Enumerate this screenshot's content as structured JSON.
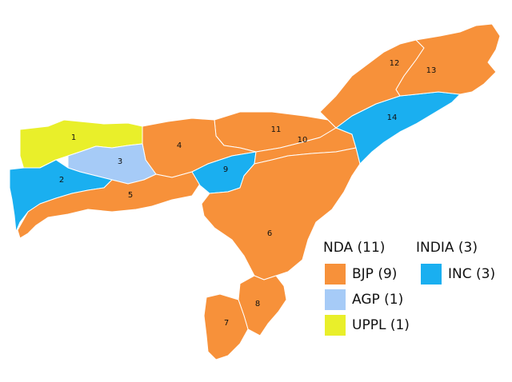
{
  "colors": {
    "bjp": "#F7913A",
    "agp": "#A6CBF7",
    "uppl": "#E9EF2A",
    "inc": "#1AAFF0",
    "border": "#ffffff"
  },
  "regions": [
    {
      "id": "1",
      "label": "1",
      "party": "uppl"
    },
    {
      "id": "2",
      "label": "2",
      "party": "inc"
    },
    {
      "id": "3",
      "label": "3",
      "party": "agp"
    },
    {
      "id": "4",
      "label": "4",
      "party": "bjp"
    },
    {
      "id": "5",
      "label": "5",
      "party": "bjp"
    },
    {
      "id": "6",
      "label": "6",
      "party": "bjp"
    },
    {
      "id": "7",
      "label": "7",
      "party": "bjp"
    },
    {
      "id": "8",
      "label": "8",
      "party": "bjp"
    },
    {
      "id": "9",
      "label": "9",
      "party": "inc"
    },
    {
      "id": "10",
      "label": "10",
      "party": "bjp"
    },
    {
      "id": "11",
      "label": "11",
      "party": "bjp"
    },
    {
      "id": "12",
      "label": "12",
      "party": "bjp"
    },
    {
      "id": "13",
      "label": "13",
      "party": "bjp"
    },
    {
      "id": "14",
      "label": "14",
      "party": "inc"
    }
  ],
  "legend": {
    "nda_title": "NDA (11)",
    "india_title": "INDIA (3)",
    "nda_items": [
      {
        "label": "BJP (9)",
        "party": "bjp"
      },
      {
        "label": "AGP (1)",
        "party": "agp"
      },
      {
        "label": "UPPL (1)",
        "party": "uppl"
      }
    ],
    "india_items": [
      {
        "label": "INC (3)",
        "party": "inc"
      }
    ]
  }
}
